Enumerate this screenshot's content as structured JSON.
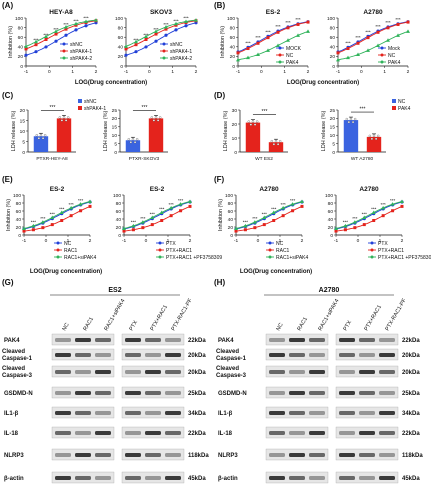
{
  "panel_letters": [
    "(A)",
    "(B)",
    "(C)",
    "(D)",
    "(E)",
    "(F)",
    "(G)",
    "(H)"
  ],
  "common": {
    "ylabel_inhibition": "Inhibition (%)",
    "xlabel_log": "LOG(Drug concentration)",
    "ylabel_ldh": "LDH release (%)",
    "sig": "***",
    "yticks_100": [
      "0",
      "20",
      "40",
      "60",
      "80",
      "100"
    ],
    "xticks_a": [
      "-1",
      "0",
      "1",
      "2"
    ],
    "yticks_20": [
      "0",
      "5",
      "10",
      "15",
      "20"
    ],
    "yticks_30": [
      "0",
      "10",
      "20",
      "30"
    ],
    "yticks_25": [
      "0",
      "5",
      "10",
      "15",
      "20",
      "25"
    ]
  },
  "panelA": {
    "charts": [
      {
        "title": "HEY-A8",
        "legend": [
          "shNC",
          "shPAK4-1",
          "shPAK4-2"
        ]
      },
      {
        "title": "SKOV3",
        "legend": [
          "shNC",
          "shPAK4-1",
          "shPAK4-2"
        ]
      }
    ]
  },
  "panelB": {
    "charts": [
      {
        "title": "ES-2",
        "legend": [
          "MOCK",
          "NC",
          "PAK4"
        ]
      },
      {
        "title": "A2780",
        "legend": [
          "Mock",
          "NC",
          "PAK4"
        ]
      }
    ]
  },
  "panelC": {
    "legend": [
      "shNC",
      "shPAK4-1"
    ],
    "bars": [
      {
        "label": "PTXR-HEY-A8",
        "values": [
          7.5,
          16
        ]
      },
      {
        "label": "PTXR-SKOV3",
        "values": [
          7,
          20
        ]
      }
    ]
  },
  "panelD": {
    "legend": [
      "NC",
      "PAK4"
    ],
    "bars": [
      {
        "label": "WT ES2",
        "values": [
          21,
          7
        ]
      },
      {
        "label": "WT A2780",
        "values": [
          19,
          9
        ]
      }
    ]
  },
  "panelE": {
    "charts": [
      {
        "title": "ES-2",
        "legend": [
          "NC",
          "RAC1",
          "RAC1+siPAK4"
        ]
      },
      {
        "title": "ES-2",
        "legend": [
          "PTX",
          "PTX+RAC1",
          "PTX+RAC1 +PF3758309"
        ]
      }
    ]
  },
  "panelF": {
    "charts": [
      {
        "title": "A2780",
        "legend": [
          "NC",
          "RAC1",
          "RAC1+siPAK4"
        ]
      },
      {
        "title": "A2780",
        "legend": [
          "PTX",
          "PTX+RAC1",
          "PTX+RAC1 +PF3758309"
        ]
      }
    ]
  },
  "panelG": {
    "cell": "ES2",
    "lanes_left": [
      "NC",
      "RAC1",
      "RAC1+siPAK4"
    ],
    "lanes_right": [
      "PTX",
      "PTX+RAC1",
      "PTX-RAC1-PF"
    ],
    "proteins": [
      "PAK4",
      "Cleaved Caspase-1",
      "Cleaved Caspase-3",
      "GSDMD-N",
      "IL1-β",
      "IL-18",
      "NLRP3",
      "β-actin"
    ],
    "sizes": [
      "22kDa",
      "20kDa",
      "20kDa",
      "25kDa",
      "34kDa",
      "22kDa",
      "118kDa",
      "45kDa"
    ]
  },
  "panelH": {
    "cell": "A2780",
    "lanes_left": [
      "NC",
      "RAC1",
      "RAC1+siPAK4"
    ],
    "lanes_right": [
      "PTX",
      "PTX+RAC1",
      "PTX-RAC1-PF"
    ],
    "proteins": [
      "PAK4",
      "Cleaved Caspase-1",
      "Cleaved Caspase-3",
      "GSDMD-N",
      "IL1-β",
      "IL-18",
      "NLRP3",
      "β-actin"
    ],
    "sizes": [
      "22kDa",
      "20kDa",
      "20kDa",
      "25kDa",
      "34kDa",
      "22kDa",
      "118kDa",
      "45kDa"
    ]
  },
  "colors": {
    "blue": "#2140d8",
    "red": "#e4231c",
    "green": "#2fb35a",
    "lightblue": "#3a63e0"
  }
}
